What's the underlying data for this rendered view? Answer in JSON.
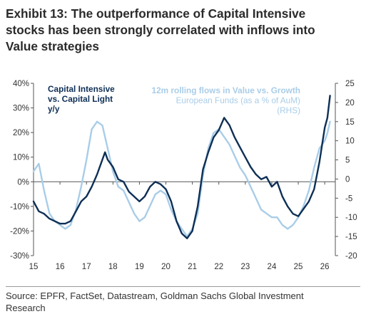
{
  "title": {
    "lines": [
      "Exhibit 13: The outperformance of Capital Intensive",
      "stocks has been strongly correlated with inflows into",
      "Value strategies"
    ]
  },
  "source": {
    "lines": [
      "Source: EPFR, FactSet, Datastream, Goldman Sachs Global Investment",
      "Research"
    ]
  },
  "chart_data": {
    "type": "line",
    "x_ticks": [
      "15",
      "16",
      "17",
      "18",
      "19",
      "20",
      "21",
      "22",
      "23",
      "24",
      "25",
      "26"
    ],
    "xlim": [
      2015,
      2026.4
    ],
    "y_left": {
      "ticks": [
        "40%",
        "30%",
        "20%",
        "10%",
        "0%",
        "-10%",
        "-20%",
        "-30%"
      ],
      "lim": [
        -30,
        40
      ]
    },
    "y_right": {
      "ticks": [
        "25",
        "20",
        "15",
        "10",
        "5",
        "0",
        "-5",
        "-10",
        "-15",
        "-20"
      ],
      "lim": [
        -20,
        25
      ]
    },
    "legend": {
      "dark_lines": [
        "Capital Intensive",
        "vs. Capital Light",
        "y/y"
      ],
      "light_bold_lines": [
        "12m rolling flows in Value vs. Growth"
      ],
      "light_lines": [
        "European Funds (as a % of AuM)",
        "(RHS)"
      ]
    },
    "series": [
      {
        "color": "#0e2f56",
        "axis": "left",
        "x": [
          2015.0,
          2015.2,
          2015.4,
          2015.6,
          2015.8,
          2016.0,
          2016.2,
          2016.4,
          2016.6,
          2016.8,
          2017.0,
          2017.2,
          2017.4,
          2017.6,
          2017.7,
          2017.8,
          2018.0,
          2018.2,
          2018.4,
          2018.6,
          2018.8,
          2019.0,
          2019.2,
          2019.4,
          2019.6,
          2019.8,
          2020.0,
          2020.2,
          2020.4,
          2020.6,
          2020.8,
          2021.0,
          2021.2,
          2021.4,
          2021.6,
          2021.8,
          2022.0,
          2022.2,
          2022.4,
          2022.6,
          2022.8,
          2023.0,
          2023.2,
          2023.4,
          2023.6,
          2023.8,
          2024.0,
          2024.2,
          2024.4,
          2024.6,
          2024.8,
          2025.0,
          2025.2,
          2025.4,
          2025.6,
          2025.8,
          2026.0,
          2026.1,
          2026.2
        ],
        "values": [
          -8,
          -12,
          -13,
          -15,
          -16,
          -17,
          -17,
          -16,
          -12,
          -8,
          -6,
          -2,
          3,
          9,
          12,
          9,
          6,
          1,
          0,
          -4,
          -6,
          -8,
          -6,
          -2,
          0,
          -1,
          -3,
          -8,
          -16,
          -21,
          -23,
          -20,
          -10,
          5,
          12,
          18,
          21,
          26,
          23,
          18,
          14,
          10,
          6,
          3,
          1,
          2,
          -2,
          0,
          -6,
          -10,
          -13,
          -14,
          -11,
          -8,
          -3,
          8,
          22,
          26,
          35
        ]
      },
      {
        "color": "#a9cde8",
        "axis": "right",
        "x": [
          2015.0,
          2015.2,
          2015.4,
          2015.6,
          2015.8,
          2016.0,
          2016.2,
          2016.4,
          2016.6,
          2016.8,
          2017.0,
          2017.2,
          2017.4,
          2017.6,
          2017.8,
          2018.0,
          2018.2,
          2018.4,
          2018.6,
          2018.8,
          2019.0,
          2019.2,
          2019.4,
          2019.6,
          2019.8,
          2020.0,
          2020.2,
          2020.4,
          2020.6,
          2020.8,
          2021.0,
          2021.2,
          2021.4,
          2021.6,
          2021.8,
          2022.0,
          2022.2,
          2022.4,
          2022.6,
          2022.8,
          2023.0,
          2023.2,
          2023.4,
          2023.6,
          2023.8,
          2024.0,
          2024.2,
          2024.4,
          2024.6,
          2024.8,
          2025.0,
          2025.2,
          2025.4,
          2025.6,
          2025.8,
          2026.0,
          2026.1,
          2026.2
        ],
        "values": [
          2,
          4,
          -3,
          -9,
          -11,
          -12,
          -13,
          -12,
          -8,
          -2,
          5,
          13,
          15,
          14,
          8,
          2,
          -2,
          -3,
          -6,
          -9,
          -11,
          -10,
          -7,
          -4,
          -3,
          -4,
          -8,
          -11,
          -13,
          -15,
          -13,
          -9,
          1,
          8,
          12,
          13,
          11,
          9,
          6,
          3,
          1,
          -2,
          -5,
          -8,
          -9,
          -10,
          -10,
          -12,
          -13,
          -12,
          -10,
          -7,
          -3,
          3,
          8,
          10,
          12,
          15
        ]
      }
    ],
    "grid": false
  }
}
